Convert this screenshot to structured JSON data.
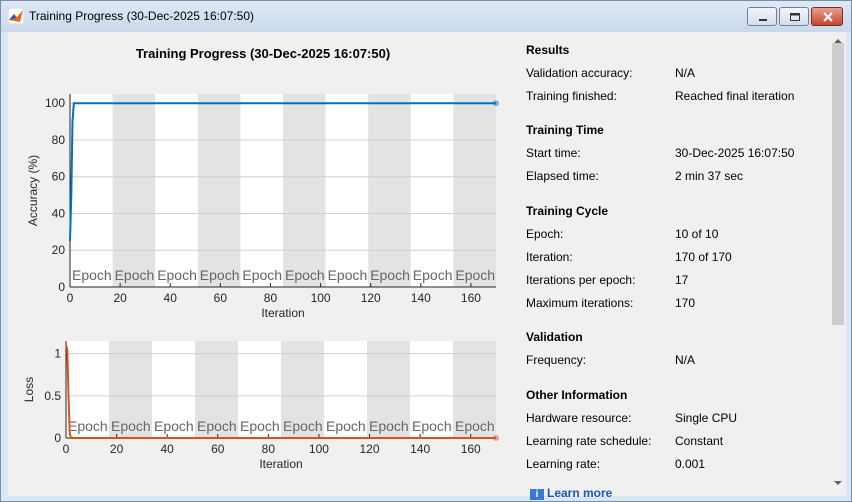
{
  "window": {
    "title": "Training Progress (30-Dec-2025 16:07:50)",
    "icons": {
      "app": "matlab-icon",
      "minimize": "minimize-icon",
      "maximize": "maximize-icon",
      "close": "close-icon"
    }
  },
  "plot_title": "Training Progress (30-Dec-2025 16:07:50)",
  "epoch_label": "Epoch",
  "chart_data": [
    {
      "type": "line",
      "title": "",
      "xlabel": "Iteration",
      "ylabel": "Accuracy (%)",
      "xlim": [
        0,
        170
      ],
      "ylim": [
        0,
        105
      ],
      "xticks": [
        "0",
        "20",
        "40",
        "60",
        "80",
        "100",
        "120",
        "140",
        "160"
      ],
      "yticks": [
        "0",
        "20",
        "40",
        "60",
        "80",
        "100"
      ],
      "grid": true,
      "epoch_bands": 10,
      "iterations_per_epoch": 17,
      "series": [
        {
          "color": "#0072bd",
          "x": [
            0,
            0.5,
            1,
            1.5,
            2,
            170
          ],
          "y": [
            25,
            50,
            90,
            100,
            100,
            100
          ]
        }
      ]
    },
    {
      "type": "line",
      "title": "",
      "xlabel": "Iteration",
      "ylabel": "Loss",
      "xlim": [
        0,
        170
      ],
      "ylim": [
        0,
        1.15
      ],
      "xticks": [
        "0",
        "20",
        "40",
        "60",
        "80",
        "100",
        "120",
        "140",
        "160"
      ],
      "yticks": [
        "0",
        "0.5",
        "1"
      ],
      "grid": true,
      "epoch_bands": 10,
      "iterations_per_epoch": 17,
      "series": [
        {
          "color": "#d95319",
          "x": [
            0,
            0.5,
            1,
            1.5,
            2,
            3,
            170
          ],
          "y": [
            1.1,
            1.05,
            0.5,
            0.05,
            0.0,
            0.0,
            0.0
          ]
        }
      ]
    }
  ],
  "results": {
    "heading": "Results",
    "rows": [
      {
        "label": "Validation accuracy:",
        "value": "N/A"
      },
      {
        "label": "Training finished:",
        "value": "Reached final iteration"
      }
    ]
  },
  "training_time": {
    "heading": "Training Time",
    "rows": [
      {
        "label": "Start time:",
        "value": "30-Dec-2025 16:07:50"
      },
      {
        "label": "Elapsed time:",
        "value": "2 min 37 sec"
      }
    ]
  },
  "training_cycle": {
    "heading": "Training Cycle",
    "rows": [
      {
        "label": "Epoch:",
        "value": "10 of 10"
      },
      {
        "label": "Iteration:",
        "value": "170 of 170"
      },
      {
        "label": "Iterations per epoch:",
        "value": "17"
      },
      {
        "label": "Maximum iterations:",
        "value": "170"
      }
    ]
  },
  "validation": {
    "heading": "Validation",
    "rows": [
      {
        "label": "Frequency:",
        "value": "N/A"
      }
    ]
  },
  "other": {
    "heading": "Other Information",
    "rows": [
      {
        "label": "Hardware resource:",
        "value": "Single CPU"
      },
      {
        "label": "Learning rate schedule:",
        "value": "Constant"
      },
      {
        "label": "Learning rate:",
        "value": "0.001"
      }
    ]
  },
  "learn_more": {
    "icon": "info-icon",
    "label": "Learn more"
  }
}
